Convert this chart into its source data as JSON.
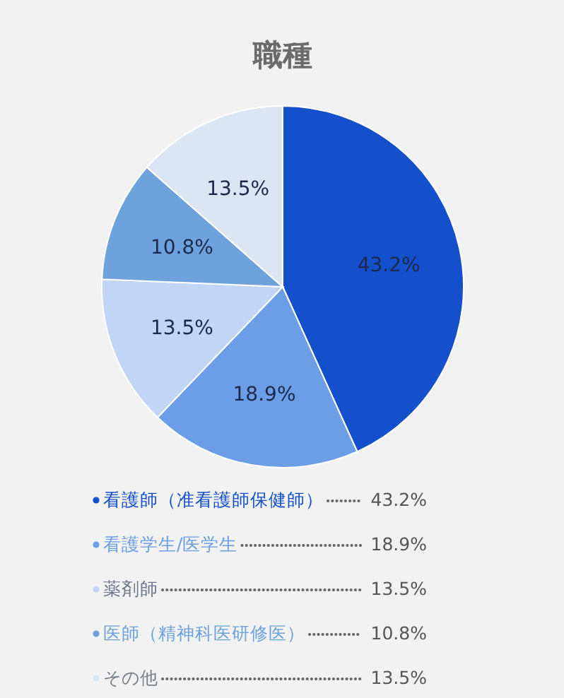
{
  "chart_data": {
    "type": "pie",
    "title": "職種",
    "categories": [
      "看護師（准看護師保健師）",
      "看護学生/医学生",
      "薬剤師",
      "医師（精神科医研修医）",
      "その他"
    ],
    "values": [
      43.2,
      18.9,
      13.5,
      10.8,
      13.5
    ],
    "colors": [
      "#1550cc",
      "#6b9ee6",
      "#c2d5f7",
      "#6ea2dc",
      "#dae6f3"
    ],
    "value_labels": [
      "43.2%",
      "18.9%",
      "13.5%",
      "10.8%",
      "13.5%"
    ],
    "legend": "bottom"
  }
}
